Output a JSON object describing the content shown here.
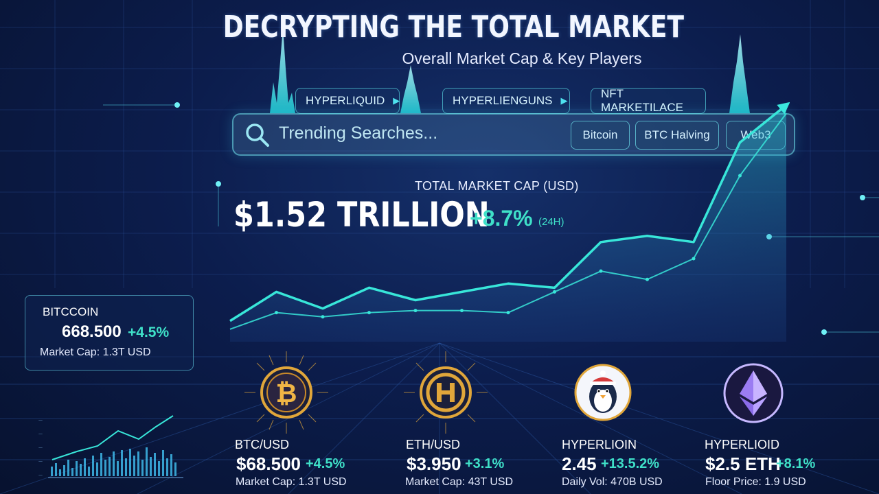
{
  "header": {
    "title": "DECRYPTING THE TOTAL MARKET",
    "subtitle": "Overall Market Cap & Key Players"
  },
  "tabs": [
    {
      "label": "HYPERLIQUID",
      "icon": "play-icon"
    },
    {
      "label": "HYPERLIENGUNS",
      "icon": "play-icon"
    },
    {
      "label": "NFT MARKETILACE"
    }
  ],
  "search": {
    "text": "Trending Searches...",
    "chips": [
      "Bitcoin",
      "BTC Halving",
      "Web3"
    ]
  },
  "market_cap": {
    "label": "TOTAL MARKET CAP (USD)",
    "value": "$1.52 TRILLION",
    "change": "+8.7%",
    "period": "(24H)"
  },
  "btc_card": {
    "name": "BITCCOIN",
    "price": "668.500",
    "change": "+4.5%",
    "cap": "Market Cap: 1.3T USD"
  },
  "coins": [
    {
      "label": "BTC/USD",
      "price": "$68.500",
      "change": "+4.5%",
      "sub": "Market Cap: 1.3T USD",
      "icon": "bitcoin-icon"
    },
    {
      "label": "ETH/USD",
      "price": "$3.950",
      "change": "+3.1%",
      "sub": "Market Cap: 43T USD",
      "icon": "hyper-h-icon"
    },
    {
      "label": "HYPERLIOIN",
      "price": "2.45",
      "change": "+13.5.2%",
      "sub": "Daily Vol: 470B USD",
      "icon": "penguin-icon"
    },
    {
      "label": "HYPERLIOID",
      "price": "$2.5 ETH",
      "change": "+8.1%",
      "sub": "Floor Price: 1.9 USD",
      "icon": "ethereum-icon"
    }
  ],
  "colors": {
    "accent": "#3fe0c8",
    "line": "#38e6d9",
    "background": "#0c1d4d",
    "gold": "#e0a63a"
  },
  "chart_data": {
    "type": "line",
    "title": "",
    "xlabel": "",
    "ylabel": "",
    "x": [
      1,
      2,
      3,
      4,
      5,
      6,
      7,
      8,
      9,
      10,
      11,
      12,
      13
    ],
    "series": [
      {
        "values": [
          10,
          24,
          16,
          26,
          20,
          24,
          28,
          26,
          48,
          51,
          48,
          96,
          114
        ]
      },
      {
        "values": [
          6,
          14,
          12,
          14,
          15,
          15,
          14,
          24,
          34,
          30,
          40,
          80,
          110
        ]
      }
    ],
    "ylim": [
      0,
      120
    ],
    "grid": false,
    "legend": "none"
  }
}
